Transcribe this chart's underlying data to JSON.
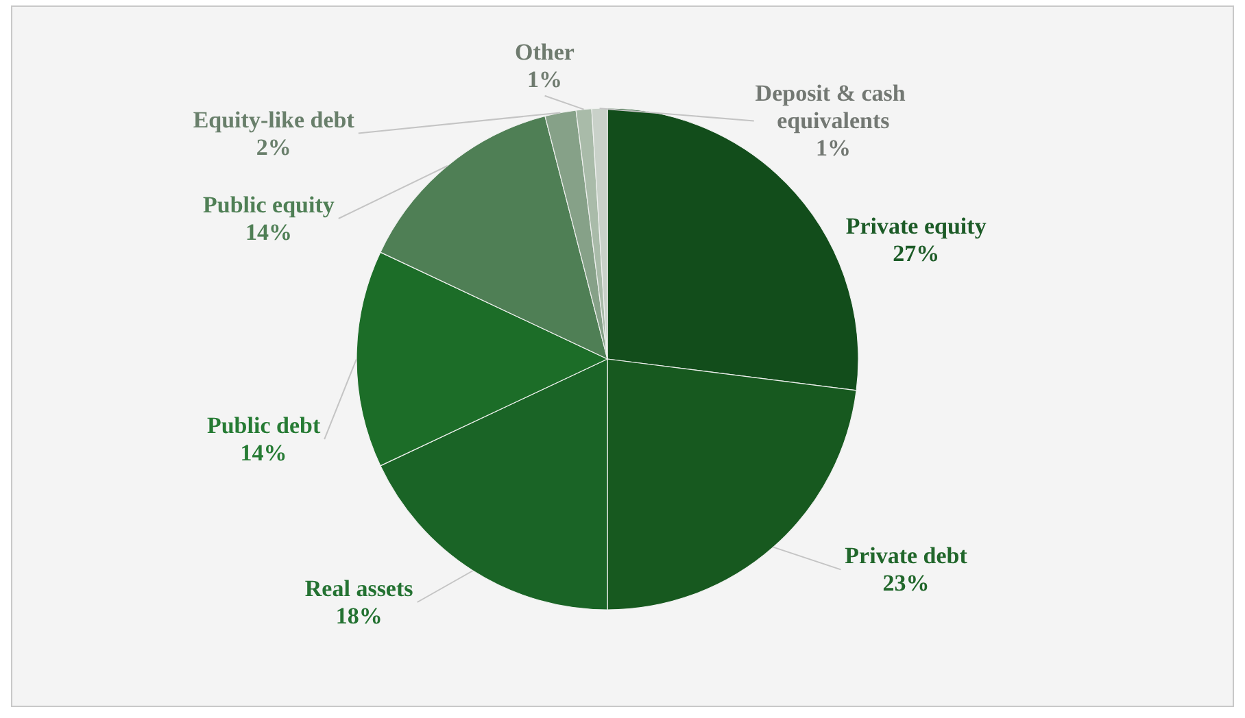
{
  "chart_data": {
    "type": "pie",
    "categories": [
      "Private equity",
      "Private debt",
      "Real assets",
      "Public debt",
      "Public equity",
      "Equity-like debt",
      "Other",
      "Deposit & cash equivalents"
    ],
    "values": [
      27,
      23,
      18,
      14,
      14,
      2,
      1,
      1
    ],
    "value_labels": [
      "27%",
      "23%",
      "18%",
      "14%",
      "14%",
      "2%",
      "1%",
      "1%"
    ],
    "colors": [
      "#124d1b",
      "#17591f",
      "#1a6426",
      "#1c6d28",
      "#4f7f55",
      "#86a188",
      "#a9bba9",
      "#c9d1c9"
    ],
    "legend": false
  }
}
